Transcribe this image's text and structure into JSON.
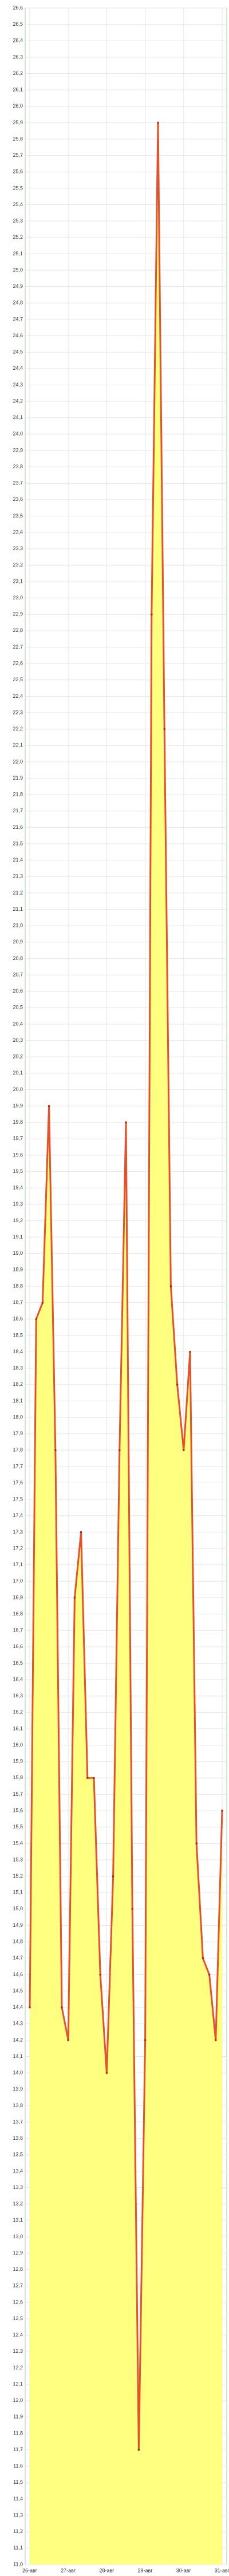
{
  "chart_data": {
    "type": "area",
    "categories": [
      "26-авг",
      null,
      null,
      null,
      null,
      null,
      "27-авг",
      null,
      null,
      null,
      null,
      null,
      "28-авг",
      null,
      null,
      null,
      null,
      null,
      "29-авг",
      null,
      null,
      null,
      null,
      null,
      "30-авг",
      null,
      null,
      null,
      null,
      null,
      "31-авг"
    ],
    "values": [
      14.4,
      18.6,
      18.7,
      19.9,
      17.8,
      14.4,
      14.2,
      16.9,
      17.3,
      15.8,
      15.8,
      14.6,
      14.0,
      15.2,
      17.8,
      19.8,
      15.0,
      11.7,
      14.2,
      22.9,
      25.9,
      22.2,
      18.8,
      18.2,
      17.8,
      18.4,
      15.4,
      14.7,
      14.6,
      14.2,
      15.6
    ],
    "color": "#e8502a",
    "fill_color": "#ffff80",
    "ylim": [
      11.0,
      26.6
    ],
    "yticks": [
      {
        "value": 11.0,
        "label": "11,0"
      },
      {
        "value": 11.1,
        "label": "11,1"
      },
      {
        "value": 11.2,
        "label": "11,2"
      },
      {
        "value": 11.3,
        "label": "11,3"
      },
      {
        "value": 11.4,
        "label": "11,4"
      },
      {
        "value": 11.5,
        "label": "11,5"
      },
      {
        "value": 11.6,
        "label": "11,6"
      },
      {
        "value": 11.7,
        "label": "11,7"
      },
      {
        "value": 11.8,
        "label": "11,8"
      },
      {
        "value": 11.9,
        "label": "11,9"
      },
      {
        "value": 12.0,
        "label": "12,0"
      },
      {
        "value": 12.1,
        "label": "12,1"
      },
      {
        "value": 12.2,
        "label": "12,2"
      },
      {
        "value": 12.3,
        "label": "12,3"
      },
      {
        "value": 12.4,
        "label": "12,4"
      },
      {
        "value": 12.5,
        "label": "12,5"
      },
      {
        "value": 12.6,
        "label": "12,6"
      },
      {
        "value": 12.7,
        "label": "12,7"
      },
      {
        "value": 12.8,
        "label": "12,8"
      },
      {
        "value": 12.9,
        "label": "12,9"
      },
      {
        "value": 13.0,
        "label": "13,0"
      },
      {
        "value": 13.1,
        "label": "13,1"
      },
      {
        "value": 13.2,
        "label": "13,2"
      },
      {
        "value": 13.3,
        "label": "13,3"
      },
      {
        "value": 13.4,
        "label": "13,4"
      },
      {
        "value": 13.5,
        "label": "13,5"
      },
      {
        "value": 13.6,
        "label": "13,6"
      },
      {
        "value": 13.7,
        "label": "13,7"
      },
      {
        "value": 13.8,
        "label": "13,8"
      },
      {
        "value": 13.9,
        "label": "13,9"
      },
      {
        "value": 14.0,
        "label": "14,0"
      },
      {
        "value": 14.1,
        "label": "14,1"
      },
      {
        "value": 14.2,
        "label": "14,2"
      },
      {
        "value": 14.3,
        "label": "14,3"
      },
      {
        "value": 14.4,
        "label": "14,4"
      },
      {
        "value": 14.5,
        "label": "14,5"
      },
      {
        "value": 14.6,
        "label": "14,6"
      },
      {
        "value": 14.7,
        "label": "14,7"
      },
      {
        "value": 14.8,
        "label": "14,8"
      },
      {
        "value": 14.9,
        "label": "14,9"
      },
      {
        "value": 15.0,
        "label": "15,0"
      },
      {
        "value": 15.1,
        "label": "15,1"
      },
      {
        "value": 15.2,
        "label": "15,2"
      },
      {
        "value": 15.3,
        "label": "15,3"
      },
      {
        "value": 15.4,
        "label": "15,4"
      },
      {
        "value": 15.5,
        "label": "15,5"
      },
      {
        "value": 15.6,
        "label": "15,6"
      },
      {
        "value": 15.7,
        "label": "15,7"
      },
      {
        "value": 15.8,
        "label": "15,8"
      },
      {
        "value": 15.9,
        "label": "15,9"
      },
      {
        "value": 16.0,
        "label": "16,0"
      },
      {
        "value": 16.1,
        "label": "16,1"
      },
      {
        "value": 16.2,
        "label": "16,2"
      },
      {
        "value": 16.3,
        "label": "16,3"
      },
      {
        "value": 16.4,
        "label": "16,4"
      },
      {
        "value": 16.5,
        "label": "16,5"
      },
      {
        "value": 16.6,
        "label": "16,6"
      },
      {
        "value": 16.7,
        "label": "16,7"
      },
      {
        "value": 16.8,
        "label": "16,8"
      },
      {
        "value": 16.9,
        "label": "16,9"
      },
      {
        "value": 17.0,
        "label": "17,0"
      },
      {
        "value": 17.1,
        "label": "17,1"
      },
      {
        "value": 17.2,
        "label": "17,2"
      },
      {
        "value": 17.3,
        "label": "17,3"
      },
      {
        "value": 17.4,
        "label": "17,4"
      },
      {
        "value": 17.5,
        "label": "17,5"
      },
      {
        "value": 17.6,
        "label": "17,6"
      },
      {
        "value": 17.7,
        "label": "17,7"
      },
      {
        "value": 17.8,
        "label": "17,8"
      },
      {
        "value": 17.9,
        "label": "17,9"
      },
      {
        "value": 18.0,
        "label": "18,0"
      },
      {
        "value": 18.1,
        "label": "18,1"
      },
      {
        "value": 18.2,
        "label": "18,2"
      },
      {
        "value": 18.3,
        "label": "18,3"
      },
      {
        "value": 18.4,
        "label": "18,4"
      },
      {
        "value": 18.5,
        "label": "18,5"
      },
      {
        "value": 18.6,
        "label": "18,6"
      },
      {
        "value": 18.7,
        "label": "18,7"
      },
      {
        "value": 18.8,
        "label": "18,8"
      },
      {
        "value": 18.9,
        "label": "18,9"
      },
      {
        "value": 19.0,
        "label": "19,0"
      },
      {
        "value": 19.1,
        "label": "19,1"
      },
      {
        "value": 19.2,
        "label": "19,2"
      },
      {
        "value": 19.3,
        "label": "19,3"
      },
      {
        "value": 19.4,
        "label": "19,4"
      },
      {
        "value": 19.5,
        "label": "19,5"
      },
      {
        "value": 19.6,
        "label": "19,6"
      },
      {
        "value": 19.7,
        "label": "19,7"
      },
      {
        "value": 19.8,
        "label": "19,8"
      },
      {
        "value": 19.9,
        "label": "19,9"
      },
      {
        "value": 20.0,
        "label": "20,0"
      },
      {
        "value": 20.1,
        "label": "20,1"
      },
      {
        "value": 20.2,
        "label": "20,2"
      },
      {
        "value": 20.3,
        "label": "20,3"
      },
      {
        "value": 20.4,
        "label": "20,4"
      },
      {
        "value": 20.5,
        "label": "20,5"
      },
      {
        "value": 20.6,
        "label": "20,6"
      },
      {
        "value": 20.7,
        "label": "20,7"
      },
      {
        "value": 20.8,
        "label": "20,8"
      },
      {
        "value": 20.9,
        "label": "20,9"
      },
      {
        "value": 21.0,
        "label": "21,0"
      },
      {
        "value": 21.1,
        "label": "21,1"
      },
      {
        "value": 21.2,
        "label": "21,2"
      },
      {
        "value": 21.3,
        "label": "21,3"
      },
      {
        "value": 21.4,
        "label": "21,4"
      },
      {
        "value": 21.5,
        "label": "21,5"
      },
      {
        "value": 21.6,
        "label": "21,6"
      },
      {
        "value": 21.7,
        "label": "21,7"
      },
      {
        "value": 21.8,
        "label": "21,8"
      },
      {
        "value": 21.9,
        "label": "21,9"
      },
      {
        "value": 22.0,
        "label": "22,0"
      },
      {
        "value": 22.1,
        "label": "22,1"
      },
      {
        "value": 22.2,
        "label": "22,2"
      },
      {
        "value": 22.3,
        "label": "22,3"
      },
      {
        "value": 22.4,
        "label": "22,4"
      },
      {
        "value": 22.5,
        "label": "22,5"
      },
      {
        "value": 22.6,
        "label": "22,6"
      },
      {
        "value": 22.7,
        "label": "22,7"
      },
      {
        "value": 22.8,
        "label": "22,8"
      },
      {
        "value": 22.9,
        "label": "22,9"
      },
      {
        "value": 23.0,
        "label": "23,0"
      },
      {
        "value": 23.1,
        "label": "23,1"
      },
      {
        "value": 23.2,
        "label": "23,2"
      },
      {
        "value": 23.3,
        "label": "23,3"
      },
      {
        "value": 23.4,
        "label": "23,4"
      },
      {
        "value": 23.5,
        "label": "23,5"
      },
      {
        "value": 23.6,
        "label": "23,6"
      },
      {
        "value": 23.7,
        "label": "23,7"
      },
      {
        "value": 23.8,
        "label": "23,8"
      },
      {
        "value": 23.9,
        "label": "23,9"
      },
      {
        "value": 24.0,
        "label": "24,0"
      },
      {
        "value": 24.1,
        "label": "24,1"
      },
      {
        "value": 24.2,
        "label": "24,2"
      },
      {
        "value": 24.3,
        "label": "24,3"
      },
      {
        "value": 24.4,
        "label": "24,4"
      },
      {
        "value": 24.5,
        "label": "24,5"
      },
      {
        "value": 24.6,
        "label": "24,6"
      },
      {
        "value": 24.7,
        "label": "24,7"
      },
      {
        "value": 24.8,
        "label": "24,8"
      },
      {
        "value": 24.9,
        "label": "24,9"
      },
      {
        "value": 25.0,
        "label": "25,0"
      },
      {
        "value": 25.1,
        "label": "25,1"
      },
      {
        "value": 25.2,
        "label": "25,2"
      },
      {
        "value": 25.3,
        "label": "25,3"
      },
      {
        "value": 25.4,
        "label": "25,4"
      },
      {
        "value": 25.5,
        "label": "25,5"
      },
      {
        "value": 25.6,
        "label": "25,6"
      },
      {
        "value": 25.7,
        "label": "25,7"
      },
      {
        "value": 25.8,
        "label": "25,8"
      },
      {
        "value": 25.9,
        "label": "25,9"
      },
      {
        "value": 26.0,
        "label": "26,0"
      },
      {
        "value": 26.1,
        "label": "26,1"
      },
      {
        "value": 26.2,
        "label": "26,2"
      },
      {
        "value": 26.3,
        "label": "26,3"
      },
      {
        "value": 26.4,
        "label": "26,4"
      },
      {
        "value": 26.5,
        "label": "26,5"
      },
      {
        "value": 26.6,
        "label": "26,6"
      }
    ],
    "grid": true
  }
}
